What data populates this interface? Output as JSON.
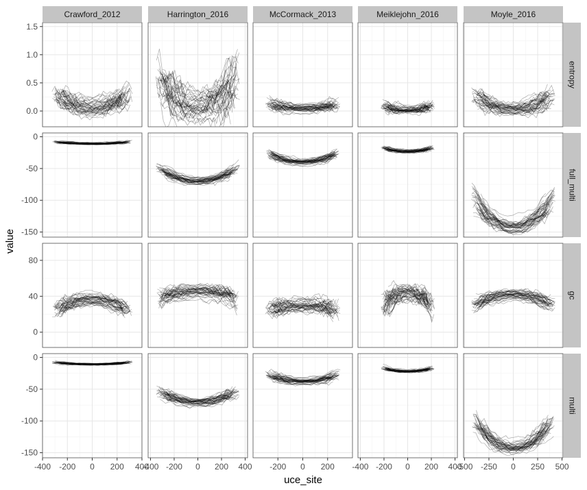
{
  "chart_data": {
    "type": "line",
    "chart_style": "faceted spaghetti line plot (many overlapping low-opacity traces per panel)",
    "xlabel": "uce_site",
    "ylabel": "value",
    "column_facets": [
      "Crawford_2012",
      "Harrington_2016",
      "McCormack_2013",
      "Meiklejohn_2016",
      "Moyle_2016"
    ],
    "row_facets": [
      "entropy",
      "full_multi",
      "gc",
      "multi"
    ],
    "columns": [
      {
        "name": "Crawford_2012",
        "xlim": [
          -400,
          400
        ],
        "xticks": [
          -400,
          -200,
          0,
          200,
          400
        ],
        "xtick_labels": [
          "-400",
          "-200",
          "0",
          "200",
          "400"
        ],
        "x_extent": [
          -300,
          300
        ]
      },
      {
        "name": "Harrington_2016",
        "xlim": [
          -420,
          420
        ],
        "xticks": [
          -400,
          -200,
          0,
          200,
          400
        ],
        "xtick_labels": [
          "-400",
          "-200",
          "0",
          "200",
          "400"
        ],
        "x_extent": [
          -330,
          330
        ]
      },
      {
        "name": "McCormack_2013",
        "xlim": [
          -400,
          400
        ],
        "xticks": [
          -200,
          0,
          200
        ],
        "xtick_labels": [
          "-200",
          "0",
          "200"
        ],
        "x_extent": [
          -280,
          280
        ]
      },
      {
        "name": "Meiklejohn_2016",
        "xlim": [
          -420,
          420
        ],
        "xticks": [
          -400,
          -200,
          0,
          200,
          400
        ],
        "xtick_labels": [
          "-400",
          "-200",
          "0",
          "200",
          "400"
        ],
        "x_extent": [
          -210,
          210
        ]
      },
      {
        "name": "Moyle_2016",
        "xlim": [
          -510,
          510
        ],
        "xticks": [
          -500,
          -250,
          0,
          250,
          500
        ],
        "xtick_labels": [
          "-500",
          "-250",
          "0",
          "250",
          "500"
        ],
        "x_extent": [
          -400,
          400
        ]
      }
    ],
    "rows": [
      {
        "name": "entropy",
        "ylim": [
          -0.28,
          1.57
        ],
        "yticks": [
          0,
          0.5,
          1,
          1.5
        ],
        "ytick_labels": [
          "0.0",
          "0.5",
          "1.0",
          "1.5"
        ]
      },
      {
        "name": "full_multi",
        "ylim": [
          -158,
          6
        ],
        "yticks": [
          -150,
          -100,
          -50,
          0
        ],
        "ytick_labels": [
          "-150",
          "-100",
          "-50",
          "0"
        ]
      },
      {
        "name": "gc",
        "ylim": [
          -17,
          99
        ],
        "yticks": [
          0,
          40,
          80
        ],
        "ytick_labels": [
          "0",
          "40",
          "80"
        ]
      },
      {
        "name": "multi",
        "ylim": [
          -158,
          6
        ],
        "yticks": [
          -150,
          -100,
          -50,
          0
        ],
        "ytick_labels": [
          "-150",
          "-100",
          "-50",
          "0"
        ]
      }
    ],
    "series_profiles": [
      {
        "row": "entropy",
        "column": "Crawford_2012",
        "shape": "u",
        "center_value": 0.05,
        "edge_value": 0.3,
        "spread": 0.14
      },
      {
        "row": "entropy",
        "column": "Harrington_2016",
        "shape": "u",
        "center_value": 0.05,
        "edge_value": 0.55,
        "spread": 0.3
      },
      {
        "row": "entropy",
        "column": "McCormack_2013",
        "shape": "u",
        "center_value": 0.04,
        "edge_value": 0.12,
        "spread": 0.07
      },
      {
        "row": "entropy",
        "column": "Meiklejohn_2016",
        "shape": "u",
        "center_value": 0.02,
        "edge_value": 0.1,
        "spread": 0.06
      },
      {
        "row": "entropy",
        "column": "Moyle_2016",
        "shape": "u",
        "center_value": 0.03,
        "edge_value": 0.26,
        "spread": 0.11
      },
      {
        "row": "full_multi",
        "column": "Crawford_2012",
        "shape": "u",
        "center_value": -11,
        "edge_value": -8,
        "spread": 1.5
      },
      {
        "row": "full_multi",
        "column": "Harrington_2016",
        "shape": "u",
        "center_value": -70,
        "edge_value": -50,
        "spread": 5
      },
      {
        "row": "full_multi",
        "column": "McCormack_2013",
        "shape": "u",
        "center_value": -40,
        "edge_value": -26,
        "spread": 4
      },
      {
        "row": "full_multi",
        "column": "Meiklejohn_2016",
        "shape": "u",
        "center_value": -23,
        "edge_value": -17,
        "spread": 2
      },
      {
        "row": "full_multi",
        "column": "Moyle_2016",
        "shape": "u",
        "center_value": -143,
        "edge_value": -95,
        "spread": 9
      },
      {
        "row": "gc",
        "column": "Crawford_2012",
        "shape": "arch",
        "center_value": 37,
        "edge_value": 24,
        "spread": 6
      },
      {
        "row": "gc",
        "column": "Harrington_2016",
        "shape": "arch",
        "center_value": 46,
        "edge_value": 38,
        "spread": 7
      },
      {
        "row": "gc",
        "column": "McCormack_2013",
        "shape": "arch",
        "center_value": 31,
        "edge_value": 27,
        "spread": 7
      },
      {
        "row": "gc",
        "column": "Meiklejohn_2016",
        "shape": "arch",
        "center_value": 42,
        "edge_value": 25,
        "spread": 8
      },
      {
        "row": "gc",
        "column": "Moyle_2016",
        "shape": "arch",
        "center_value": 41,
        "edge_value": 30,
        "spread": 5
      },
      {
        "row": "multi",
        "column": "Crawford_2012",
        "shape": "u",
        "center_value": -11,
        "edge_value": -8,
        "spread": 1.5
      },
      {
        "row": "multi",
        "column": "Harrington_2016",
        "shape": "u",
        "center_value": -70,
        "edge_value": -52,
        "spread": 6
      },
      {
        "row": "multi",
        "column": "McCormack_2013",
        "shape": "u",
        "center_value": -38,
        "edge_value": -27,
        "spread": 4
      },
      {
        "row": "multi",
        "column": "Meiklejohn_2016",
        "shape": "u",
        "center_value": -22,
        "edge_value": -17,
        "spread": 2
      },
      {
        "row": "multi",
        "column": "Moyle_2016",
        "shape": "u",
        "center_value": -143,
        "edge_value": -103,
        "spread": 9
      }
    ],
    "lines_per_panel": 40,
    "line_color": "#000000",
    "strip_fill": "#c4c4c4",
    "grid": true,
    "legend": "none"
  }
}
